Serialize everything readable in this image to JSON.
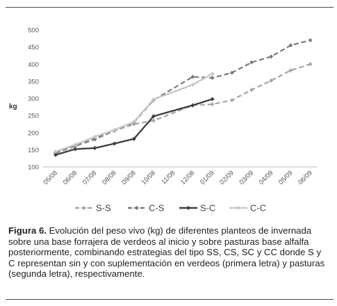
{
  "chart_data": {
    "type": "line",
    "ylabel": "kg",
    "ylim": [
      100,
      500
    ],
    "yticks": [
      100,
      150,
      200,
      250,
      300,
      350,
      400,
      450,
      500
    ],
    "grid": false,
    "legend_position": "bottom",
    "categories": [
      "05/08",
      "06/08",
      "07/08",
      "08/08",
      "09/08",
      "10/08",
      "11/08",
      "12/08",
      "01/09",
      "02/09",
      "03/09",
      "04/09",
      "05/09",
      "06/09"
    ],
    "series": [
      {
        "name": "S-S",
        "color": "#a6a6a6",
        "style": "dashed",
        "points": [
          [
            0,
            140
          ],
          [
            1,
            160
          ],
          [
            2,
            180
          ],
          [
            3,
            205
          ],
          [
            4,
            225
          ],
          [
            5,
            235
          ],
          [
            7,
            280
          ],
          [
            8,
            283
          ],
          [
            9,
            295
          ],
          [
            10,
            325
          ],
          [
            11,
            352
          ],
          [
            12,
            382
          ],
          [
            13,
            400
          ]
        ]
      },
      {
        "name": "C-S",
        "color": "#7a7a7a",
        "style": "dashed",
        "points": [
          [
            0,
            142
          ],
          [
            1,
            163
          ],
          [
            2,
            182
          ],
          [
            3,
            207
          ],
          [
            4,
            230
          ],
          [
            5,
            295
          ],
          [
            7,
            363
          ],
          [
            8,
            360
          ],
          [
            9,
            375
          ],
          [
            10,
            405
          ],
          [
            11,
            422
          ],
          [
            12,
            455
          ],
          [
            13,
            470
          ]
        ]
      },
      {
        "name": "S-C",
        "color": "#3f3f3f",
        "style": "solid",
        "points": [
          [
            0,
            135
          ],
          [
            1,
            152
          ],
          [
            2,
            155
          ],
          [
            3,
            168
          ],
          [
            4,
            182
          ],
          [
            5,
            248
          ],
          [
            7,
            280
          ],
          [
            8,
            298
          ]
        ]
      },
      {
        "name": "C-C",
        "color": "#c8c8c8",
        "style": "solid",
        "points": [
          [
            0,
            145
          ],
          [
            1,
            165
          ],
          [
            2,
            188
          ],
          [
            3,
            208
          ],
          [
            4,
            232
          ],
          [
            5,
            297
          ],
          [
            7,
            340
          ],
          [
            8,
            372
          ]
        ]
      }
    ]
  },
  "caption": {
    "label": "Figura 6.",
    "text": " Evolución del peso vivo (kg) de diferentes planteos de invernada sobre una base forrajera de verdeos al inicio y sobre pasturas base alfalfa posteriormente, combinando estrategias del tipo SS, CS, SC y CC donde S y C representan sin y con suplementación en verdeos (primera letra) y pasturas (segunda letra), respectivamente."
  }
}
